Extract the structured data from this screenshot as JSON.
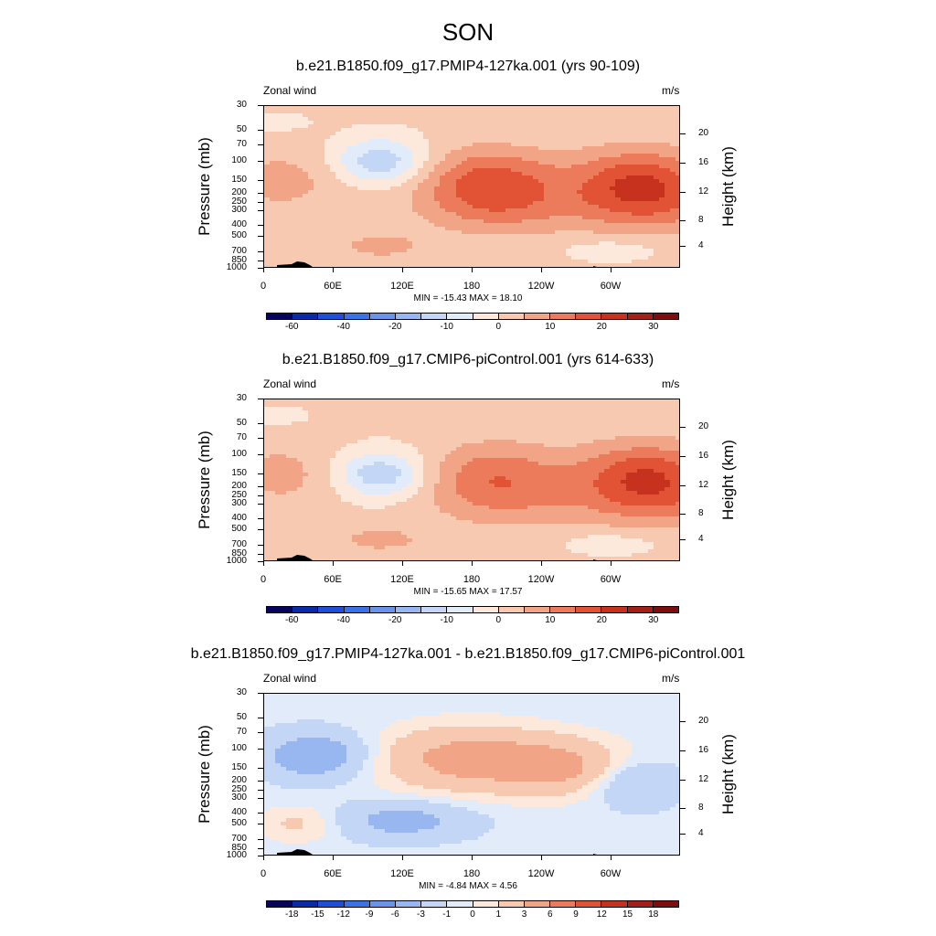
{
  "figure_title": "SON",
  "chart_data": [
    {
      "type": "heatmap",
      "title": "b.e21.B1850.f09_g17.PMIP4-127ka.001 (yrs 90-109)",
      "variable": "Zonal wind",
      "units": "m/s",
      "ylabel": "Pressure (mb)",
      "ylabel_right": "Height (km)",
      "yticks": [
        "30",
        "50",
        "70",
        "100",
        "150",
        "200",
        "250",
        "300",
        "400",
        "500",
        "700",
        "850",
        "1000"
      ],
      "yticks_right": [
        "20",
        "16",
        "12",
        "8",
        "4"
      ],
      "xticks": [
        "0",
        "60E",
        "120E",
        "180",
        "120W",
        "60W"
      ],
      "min": -15.43,
      "max": 18.1,
      "minmax_text": "MIN = -15.43  MAX =  18.10",
      "colorbar_labels": [
        "-60",
        "-40",
        "-20",
        "-10",
        "0",
        "10",
        "20",
        "30"
      ],
      "contour_levels": [
        -70,
        -60,
        -50,
        -40,
        -30,
        -20,
        -15,
        -10,
        -5,
        0,
        5,
        10,
        15,
        20,
        25,
        30,
        40
      ],
      "features": [
        {
          "name": "jet-nh-dateline",
          "center_lon": 195,
          "center_p": 150,
          "peak": 16
        },
        {
          "name": "jet-nh-west",
          "center_lon": 325,
          "center_p": 150,
          "peak": 18.1
        },
        {
          "name": "jet-sh-east",
          "center_lon": 15,
          "center_p": 150,
          "peak": 6
        },
        {
          "name": "easterly-east",
          "center_lon": 100,
          "center_p": 100,
          "peak": -15.43
        }
      ]
    },
    {
      "type": "heatmap",
      "title": "b.e21.B1850.f09_g17.CMIP6-piControl.001 (yrs 614-633)",
      "variable": "Zonal wind",
      "units": "m/s",
      "ylabel": "Pressure (mb)",
      "ylabel_right": "Height (km)",
      "yticks": [
        "30",
        "50",
        "70",
        "100",
        "150",
        "200",
        "250",
        "300",
        "400",
        "500",
        "700",
        "850",
        "1000"
      ],
      "yticks_right": [
        "20",
        "16",
        "12",
        "8",
        "4"
      ],
      "xticks": [
        "0",
        "60E",
        "120E",
        "180",
        "120W",
        "60W"
      ],
      "min": -15.65,
      "max": 17.57,
      "minmax_text": "MIN = -15.65  MAX =  17.57",
      "colorbar_labels": [
        "-60",
        "-40",
        "-20",
        "-10",
        "0",
        "10",
        "20",
        "30"
      ],
      "contour_levels": [
        -70,
        -60,
        -50,
        -40,
        -30,
        -20,
        -15,
        -10,
        -5,
        0,
        5,
        10,
        15,
        20,
        25,
        30,
        40
      ],
      "features": [
        {
          "name": "jet-nh-dateline",
          "center_lon": 200,
          "center_p": 150,
          "peak": 12
        },
        {
          "name": "jet-nh-west",
          "center_lon": 330,
          "center_p": 150,
          "peak": 17.57
        },
        {
          "name": "jet-sh-east",
          "center_lon": 15,
          "center_p": 150,
          "peak": 6
        },
        {
          "name": "easterly-east",
          "center_lon": 100,
          "center_p": 150,
          "peak": -15.65
        }
      ]
    },
    {
      "type": "heatmap",
      "title": "b.e21.B1850.f09_g17.PMIP4-127ka.001 - b.e21.B1850.f09_g17.CMIP6-piControl.001",
      "variable": "Zonal wind",
      "units": "m/s",
      "ylabel": "Pressure (mb)",
      "ylabel_right": "Height (km)",
      "yticks": [
        "30",
        "50",
        "70",
        "100",
        "150",
        "200",
        "250",
        "300",
        "400",
        "500",
        "700",
        "850",
        "1000"
      ],
      "yticks_right": [
        "20",
        "16",
        "12",
        "8",
        "4"
      ],
      "xticks": [
        "0",
        "60E",
        "120E",
        "180",
        "120W",
        "60W"
      ],
      "min": -4.84,
      "max": 4.56,
      "minmax_text": "MIN = -4.84  MAX =  4.56",
      "colorbar_labels": [
        "-18",
        "-15",
        "-12",
        "-9",
        "-6",
        "-3",
        "-1",
        "0",
        "1",
        "3",
        "6",
        "9",
        "12",
        "15",
        "18"
      ],
      "contour_levels": [
        -21,
        -18,
        -15,
        -12,
        -9,
        -6,
        -3,
        -1,
        0,
        1,
        3,
        6,
        9,
        12,
        15,
        18,
        21
      ],
      "features": [
        {
          "name": "diff-positive-pacific",
          "center_lon": 175,
          "center_p": 150,
          "peak": 4.56
        },
        {
          "name": "diff-negative-east",
          "center_lon": 45,
          "center_p": 150,
          "peak": -4.84
        }
      ]
    }
  ],
  "colors": {
    "cmap": [
      "#08045e",
      "#0a2aa6",
      "#1f4fd6",
      "#3b73e6",
      "#6a94ec",
      "#98b6f0",
      "#c4d6f5",
      "#e2ebfa",
      "#fde8dc",
      "#f8c9b1",
      "#f2a487",
      "#ec7b5b",
      "#e25234",
      "#c7321f",
      "#a3201a",
      "#7d0e10"
    ]
  }
}
